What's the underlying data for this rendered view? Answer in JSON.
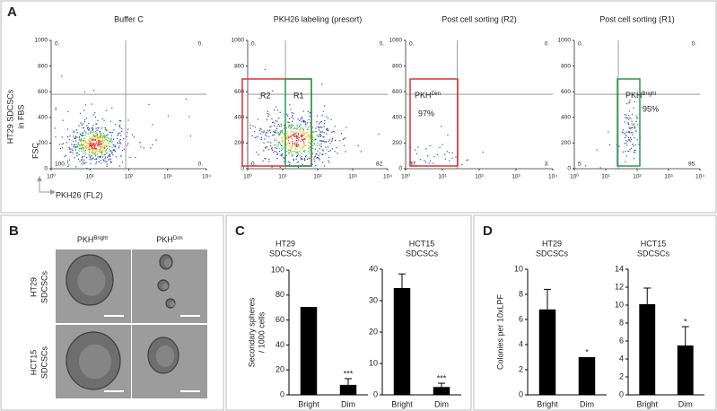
{
  "panel_labels": [
    "A",
    "B",
    "C",
    "D"
  ],
  "flow_axes": {
    "xlim": [
      1,
      10000
    ],
    "xscale": "log",
    "xticks": [
      {
        "value": 1,
        "label": "10⁰"
      },
      {
        "value": 10,
        "label": "10¹"
      },
      {
        "value": 100,
        "label": "10²"
      },
      {
        "value": 1000,
        "label": "10³"
      },
      {
        "value": 10000,
        "label": "10⁴"
      }
    ],
    "ylim": [
      0,
      1000
    ],
    "yticks": [
      0,
      200,
      400,
      600,
      800,
      1000
    ],
    "xlabel": "PKH26 (FL2)",
    "ylabel": "FSC",
    "row_label": [
      "HT29 SDCSCs",
      "in FBS"
    ]
  },
  "flow_panels": [
    {
      "title": "Buffer C",
      "quadrants": [
        "0.",
        "0.",
        "100.",
        "0."
      ],
      "gates": []
    },
    {
      "title": "PKH26 labeling (presort)",
      "quadrants": [
        "0.",
        "0.",
        "0.",
        "82."
      ],
      "gates": [
        {
          "label": "R2"
        },
        {
          "label": "R1"
        }
      ]
    },
    {
      "title": "Post  cell sorting (R2)",
      "quadrants": [
        "0.",
        "0.",
        "57.",
        "3."
      ],
      "gates": [
        {
          "label": {
            "text": "PKH",
            "sup": "Dim"
          },
          "percent": "97%"
        }
      ]
    },
    {
      "title": "Post  cell sorting (R1)",
      "quadrants": [
        "0.",
        "0.",
        "5",
        "95."
      ],
      "gates": [
        {
          "label": {
            "text": "PKH",
            "sup": "Bright"
          },
          "percent": "95%"
        }
      ]
    }
  ],
  "micrographs": {
    "column_labels": [
      {
        "text": "PKH",
        "sup": "Bright"
      },
      {
        "text": "PKH",
        "sup": "Dim"
      }
    ],
    "row_labels": [
      [
        "HT29",
        "SDCSCs"
      ],
      [
        "HCT15",
        "SDCSCs"
      ]
    ]
  },
  "chart_data": [
    {
      "type": "bar",
      "title": [
        "HT29",
        "SDCSCs"
      ],
      "ylabel": [
        "Secondary spheres",
        "/ 1000 cells"
      ],
      "categories": [
        "Bright",
        "Dim"
      ],
      "values": [
        70.5,
        8
      ],
      "errors": [
        null,
        5
      ],
      "significance": [
        null,
        "***"
      ],
      "color": "#000000",
      "ylim": [
        0,
        100
      ],
      "yticks": [
        0,
        20,
        40,
        60,
        80,
        100
      ]
    },
    {
      "type": "bar",
      "title": [
        "HCT15",
        "SDCSCs"
      ],
      "categories": [
        "Bright",
        "Dim"
      ],
      "values": [
        34,
        2.5
      ],
      "errors": [
        4.5,
        1.2
      ],
      "significance": [
        null,
        "***"
      ],
      "color": "#000000",
      "ylim": [
        0,
        40
      ],
      "yticks": [
        0,
        10,
        20,
        30,
        40
      ]
    },
    {
      "type": "bar",
      "title": [
        "HT29",
        "SDCSCs"
      ],
      "ylabel": [
        "Colonies per 10xLPF"
      ],
      "categories": [
        "Bright",
        "Dim"
      ],
      "values": [
        6.8,
        3
      ],
      "errors": [
        1.6,
        null
      ],
      "significance": [
        null,
        "*"
      ],
      "color": "#000000",
      "ylim": [
        0,
        10
      ],
      "yticks": [
        0,
        2,
        4,
        6,
        8,
        10
      ]
    },
    {
      "type": "bar",
      "title": [
        "HCT15",
        "SDCSCs"
      ],
      "categories": [
        "Bright",
        "Dim"
      ],
      "values": [
        10.1,
        5.5
      ],
      "errors": [
        1.8,
        2.1
      ],
      "significance": [
        null,
        "*"
      ],
      "color": "#000000",
      "ylim": [
        0,
        14
      ],
      "yticks": [
        0,
        2,
        4,
        6,
        8,
        10,
        12,
        14
      ]
    }
  ]
}
